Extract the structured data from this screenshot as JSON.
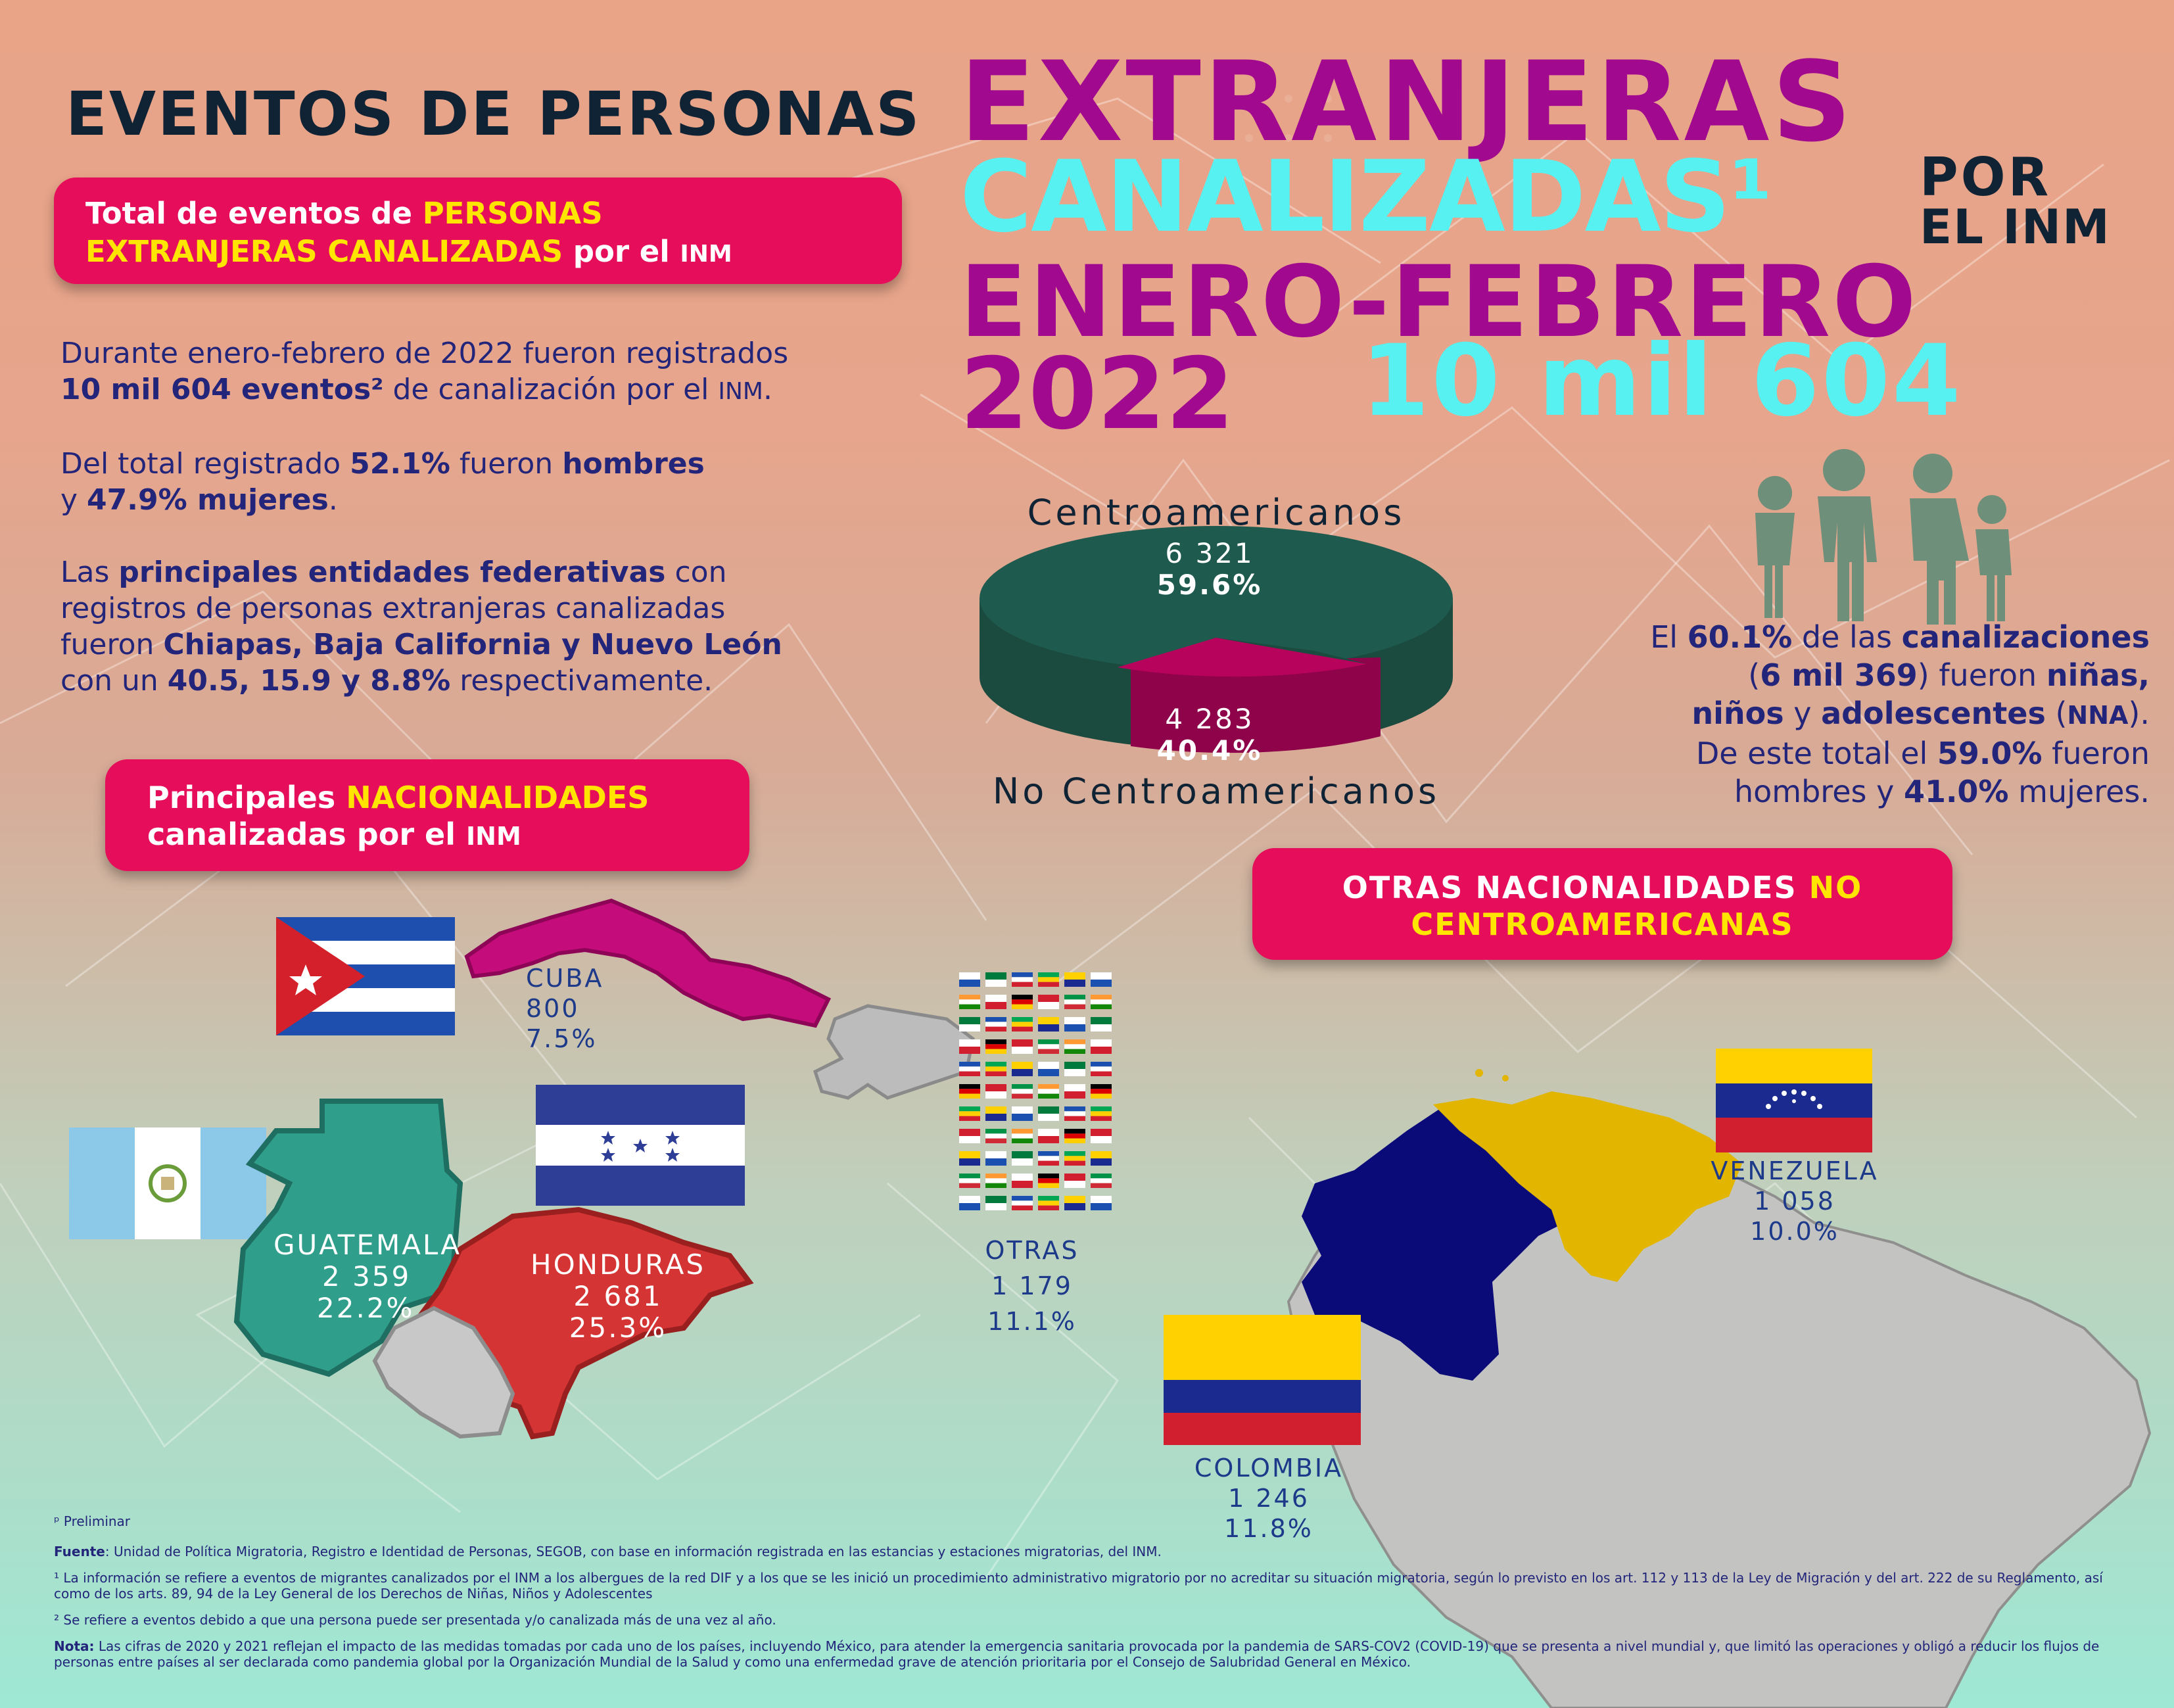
{
  "header": {
    "line1": "EVENTOS DE PERSONAS",
    "line1_accent": "EXTRANJERAS",
    "line2_accent": "CANALIZADAS¹",
    "line2_suffix_a": "POR",
    "line2_suffix_b": "EL INM",
    "line3": "ENERO-FEBRERO",
    "line4_year": "2022",
    "line4_total": "10 mil 604"
  },
  "total_pill": {
    "a": "Total de eventos de ",
    "b": "PERSONAS",
    "c": "EXTRANJERAS CANALIZADAS",
    "d": " por el ",
    "e": "INM"
  },
  "intro": {
    "p1_a": "Durante enero-febrero de 2022 fueron registrados",
    "p1_b": "10 mil  604 eventos²",
    "p1_c": " de canalización por el ",
    "p1_d": "INM",
    "p1_e": ".",
    "p2_a": "Del total registrado ",
    "p2_b": "52.1%",
    "p2_c": " fueron ",
    "p2_d": "hombres",
    "p2_e": "y ",
    "p2_f": "47.9% mujeres",
    "p2_g": ".",
    "p3_a": "Las ",
    "p3_b": "principales entidades federativas",
    "p3_c": " con",
    "p3_d": "registros de personas extranjeras canalizadas",
    "p3_e": "fueron ",
    "p3_f": "Chiapas, Baja California y Nuevo León",
    "p3_g": "con un ",
    "p3_h": "40.5, 15.9 y 8.8%",
    "p3_i": " respectivamente."
  },
  "pie": {
    "top_label": "Centroamericanos",
    "top_value": "6 321",
    "top_pct": "59.6%",
    "bottom_value": "4 283",
    "bottom_pct": "40.4%",
    "bottom_label": "No Centroamericanos",
    "colors": {
      "central": "#1f5a4e",
      "other": "#b7035c"
    }
  },
  "chart_data": {
    "type": "pie",
    "categories": [
      "Centroamericanos",
      "No Centroamericanos"
    ],
    "values": [
      6321,
      4283
    ],
    "percentages": [
      59.6,
      40.4
    ]
  },
  "nna": {
    "l1_a": "El ",
    "l1_b": "60.1%",
    "l1_c": " de las ",
    "l1_d": "canalizaciones",
    "l2_a": "(",
    "l2_b": "6 mil 369",
    "l2_c": ") fueron ",
    "l2_d": "niñas,",
    "l3_a": "niños",
    "l3_b": " y ",
    "l3_c": "adolescentes",
    "l3_d": " (",
    "l3_e": "NNA",
    "l3_f": ").",
    "l4_a": "De este total el ",
    "l4_b": "59.0%",
    "l4_c": " fueron",
    "l5_a": "hombres y ",
    "l5_b": "41.0%",
    "l5_c": " mujeres."
  },
  "nac_pill": {
    "a": "Principales ",
    "b": "NACIONALIDADES",
    "c": "canalizadas por el ",
    "d": "INM"
  },
  "otras_pill": {
    "a": "OTRAS NACIONALIDADES ",
    "b": "NO",
    "c": "CENTROAMERICANAS"
  },
  "countries": {
    "cuba": {
      "name": "CUBA",
      "value": "800",
      "pct": "7.5%"
    },
    "guatemala": {
      "name": "GUATEMALA",
      "value": "2 359",
      "pct": "22.2%"
    },
    "honduras": {
      "name": "HONDURAS",
      "value": "2 681",
      "pct": "25.3%"
    },
    "otras": {
      "name": "OTRAS",
      "value": "1 179",
      "pct": "11.1%"
    },
    "venezuela": {
      "name": "VENEZUELA",
      "value": "1 058",
      "pct": "10.0%"
    },
    "colombia": {
      "name": "COLOMBIA",
      "value": "1 246",
      "pct": "11.8%"
    }
  },
  "footnotes": {
    "p": "ᵖ Preliminar",
    "fuente_label": "Fuente",
    "fuente": ": Unidad de Política Migratoria, Registro e Identidad de Personas, SEGOB, con base en información registrada en las estancias y estaciones migratorias, del INM.",
    "n1a": "¹ La información se refiere a eventos de migrantes canalizados por el INM a los albergues de la red DIF y a los que se les inició un procedimiento administrativo migratorio por no acreditar su situación migratoria, según lo previsto en los art. 112 y 113 de la Ley de Migración y del art. 222 de su Reglamento, así",
    "n1b": "como de los arts. 89, 94 de la Ley General de los Derechos de Niñas, Niños y Adolescentes",
    "n2": "² Se refiere a eventos debido a que una persona puede ser presentada y/o canalizada más de una vez al año.",
    "nota_label": "Nota:",
    "nota_a": " Las cifras de 2020 y 2021 reflejan el impacto de las medidas tomadas por cada uno de los países, incluyendo México, para atender la emergencia sanitaria provocada por la pandemia de SARS-COV2 (COVID-19) que se presenta a nivel mundial y, que limitó las operaciones y obligó a reducir los flujos de",
    "nota_b": "personas entre países al ser declarada como pandemia global por la Organización Mundial de la Salud y como una enfermedad grave de atención prioritaria por el Consejo de Salubridad General en México."
  }
}
